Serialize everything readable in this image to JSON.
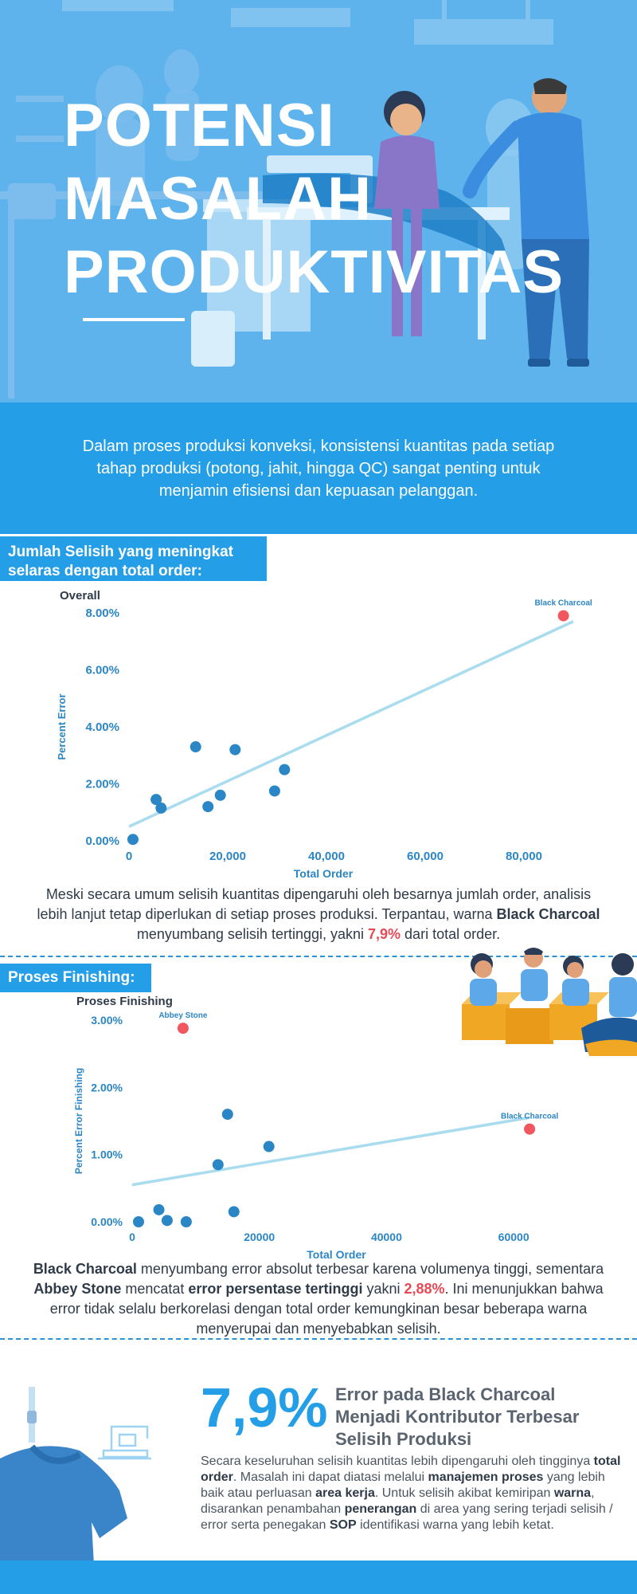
{
  "hero": {
    "title_line1": "POTENSI",
    "title_line2": "MASALAH",
    "title_line3": "PRODUKTIVITAS"
  },
  "intro": {
    "text": "Dalam proses produksi konveksi, konsistensi kuantitas pada setiap tahap produksi (potong, jahit, hingga QC) sangat penting untuk menjamin efisiensi dan kepuasan pelanggan."
  },
  "section1": {
    "tag": "Jumlah Selisih yang meningkat selaras dengan total order:",
    "para_a": "Meski secara umum selisih kuantitas dipengaruhi oleh besarnya jumlah order, analisis lebih lanjut tetap diperlukan di setiap proses produksi. Terpantau, warna ",
    "para_b": "Black Charcoal",
    "para_c": " menyumbang selisih tertinggi, yakni ",
    "para_d": "7,9%",
    "para_e": " dari total order."
  },
  "section2": {
    "tag": "Proses Finishing:",
    "para_a": "Black Charcoal",
    "para_b": " menyumbang error absolut terbesar karena volumenya tinggi, sementara ",
    "para_c": "Abbey Stone",
    "para_d": " mencatat ",
    "para_e": "error persentase tertinggi",
    "para_f": " yakni ",
    "para_g": "2,88%",
    "para_h": ". Ini menunjukkan bahwa error tidak selalu berkorelasi dengan total order kemungkinan besar beberapa warna menyerupai dan menyebabkan selisih."
  },
  "summary": {
    "big_number": "7,9%",
    "headline": "Error pada Black Charcoal Menjadi Kontributor Terbesar Selisih Produksi",
    "p1": "Secara keseluruhan selisih kuantitas lebih dipengaruhi oleh tingginya ",
    "p2": "total order",
    "p3": ". Masalah ini dapat diatasi melalui ",
    "p4": "manajemen proses",
    "p5": " yang lebih baik atau perluasan ",
    "p6": "area kerja",
    "p7": ". Untuk selisih akibat kemiripan ",
    "p8": "warna",
    "p9": ", disarankan penambahan ",
    "p10": "penerangan",
    "p11": " di area yang sering terjadi selisih / error serta penegakan ",
    "p12": "SOP",
    "p13": " identifikasi warna yang lebih ketat."
  },
  "colors": {
    "primary": "#249ee6",
    "hero_bg": "#5fb3ec",
    "point": "#2b86c5",
    "highlight": "#f0575f",
    "trend": "#a9dcee",
    "axis_text": "#2b86c5"
  },
  "chart_data": [
    {
      "type": "scatter",
      "title": "Overall",
      "xlabel": "Total Order",
      "ylabel": "Percent Error",
      "xlim": [
        0,
        90000
      ],
      "ylim": [
        0,
        8
      ],
      "xticks": [
        "0",
        "20,000",
        "40,000",
        "60,000",
        "80,000"
      ],
      "xtick_values": [
        0,
        20000,
        40000,
        60000,
        80000
      ],
      "yticks": [
        "0.00%",
        "2.00%",
        "4.00%",
        "6.00%",
        "8.00%"
      ],
      "ytick_values": [
        0,
        2,
        4,
        6,
        8
      ],
      "points": [
        {
          "x": 800,
          "y": 0.05
        },
        {
          "x": 5500,
          "y": 1.45
        },
        {
          "x": 6500,
          "y": 1.15
        },
        {
          "x": 13500,
          "y": 3.3
        },
        {
          "x": 16000,
          "y": 1.2
        },
        {
          "x": 18500,
          "y": 1.6
        },
        {
          "x": 21500,
          "y": 3.2
        },
        {
          "x": 29500,
          "y": 1.75
        },
        {
          "x": 31500,
          "y": 2.5
        },
        {
          "x": 88000,
          "y": 7.9,
          "label": "Black Charcoal",
          "highlight": true
        }
      ],
      "trendline": {
        "x": [
          0,
          90000
        ],
        "y": [
          0.5,
          7.7
        ]
      },
      "grid": false
    },
    {
      "type": "scatter",
      "title": "Proses Finishing",
      "xlabel": "Total Order",
      "ylabel": "Percent Error Finishing",
      "xlim": [
        0,
        70000
      ],
      "ylim": [
        0,
        3
      ],
      "xticks": [
        "0",
        "20000",
        "40000",
        "60000"
      ],
      "xtick_values": [
        0,
        20000,
        40000,
        60000
      ],
      "yticks": [
        "0.00%",
        "1.00%",
        "2.00%",
        "3.00%"
      ],
      "ytick_values": [
        0,
        1,
        2,
        3
      ],
      "points": [
        {
          "x": 1000,
          "y": 0.0
        },
        {
          "x": 4200,
          "y": 0.18
        },
        {
          "x": 5500,
          "y": 0.02
        },
        {
          "x": 8500,
          "y": 0.0
        },
        {
          "x": 13500,
          "y": 0.85
        },
        {
          "x": 15000,
          "y": 1.6
        },
        {
          "x": 16000,
          "y": 0.15
        },
        {
          "x": 21500,
          "y": 1.12
        },
        {
          "x": 8000,
          "y": 2.88,
          "label": "Abbey Stone",
          "highlight": true
        },
        {
          "x": 62500,
          "y": 1.38,
          "label": "Black Charcoal",
          "highlight": true
        }
      ],
      "trendline": {
        "x": [
          0,
          62500
        ],
        "y": [
          0.55,
          1.55
        ]
      },
      "grid": false
    }
  ]
}
